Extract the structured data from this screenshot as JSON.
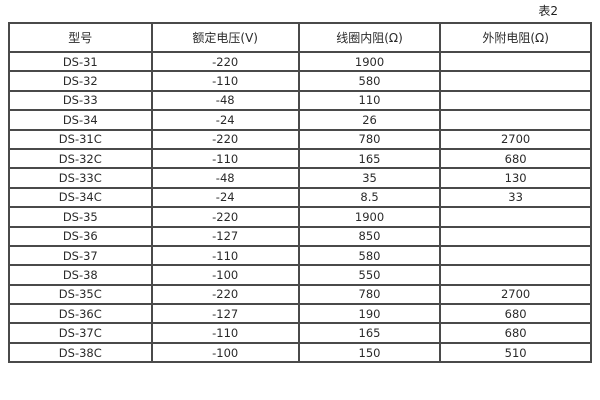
{
  "page": {
    "caption": "表2"
  },
  "table": {
    "columns": [
      "型号",
      "额定电压(V)",
      "线圈内阻(Ω)",
      "外附电阻(Ω)"
    ],
    "rows": [
      [
        "DS-31",
        "-220",
        "1900",
        ""
      ],
      [
        "DS-32",
        "-110",
        "580",
        ""
      ],
      [
        "DS-33",
        "-48",
        "110",
        ""
      ],
      [
        "DS-34",
        "-24",
        "26",
        ""
      ],
      [
        "DS-31C",
        "-220",
        "780",
        "2700"
      ],
      [
        "DS-32C",
        "-110",
        "165",
        "680"
      ],
      [
        "DS-33C",
        "-48",
        "35",
        "130"
      ],
      [
        "DS-34C",
        "-24",
        "8.5",
        "33"
      ],
      [
        "DS-35",
        "-220",
        "1900",
        ""
      ],
      [
        "DS-36",
        "-127",
        "850",
        ""
      ],
      [
        "DS-37",
        "-110",
        "580",
        ""
      ],
      [
        "DS-38",
        "-100",
        "550",
        ""
      ],
      [
        "DS-35C",
        "-220",
        "780",
        "2700"
      ],
      [
        "DS-36C",
        "-127",
        "190",
        "680"
      ],
      [
        "DS-37C",
        "-110",
        "165",
        "680"
      ],
      [
        "DS-38C",
        "-100",
        "150",
        "510"
      ]
    ]
  }
}
